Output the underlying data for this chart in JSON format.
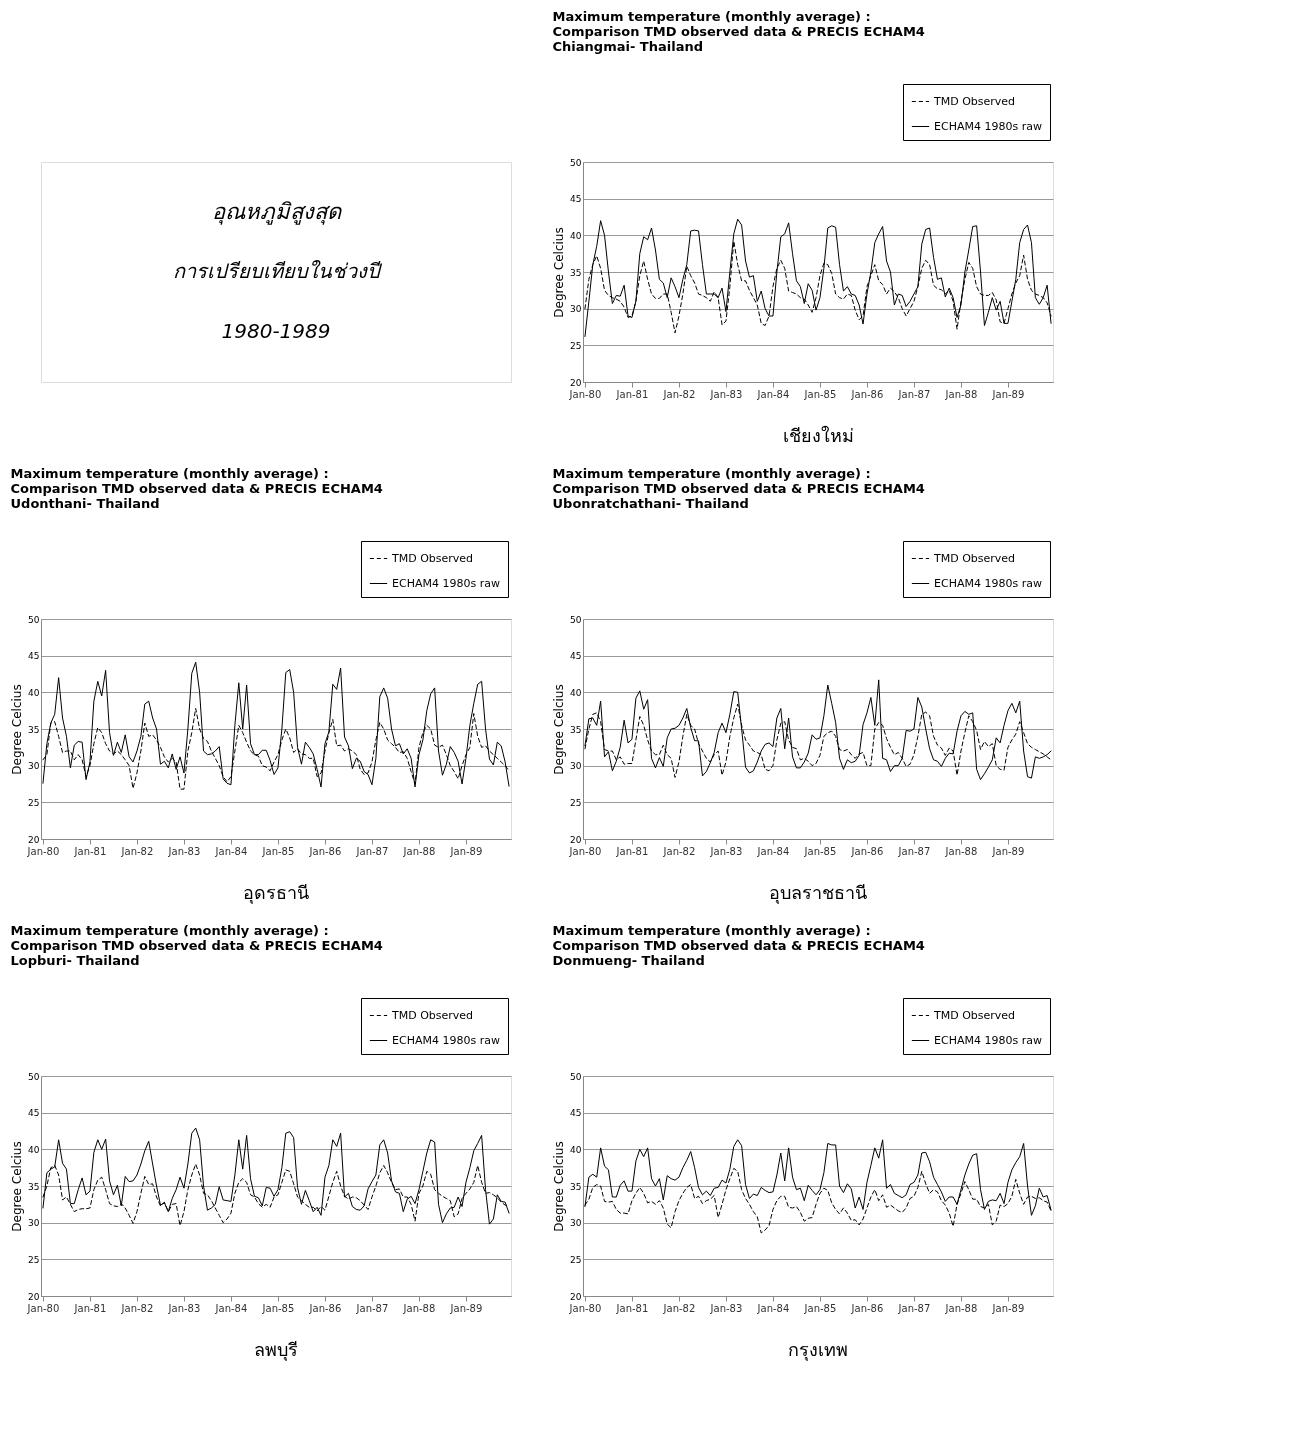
{
  "chart_data": [
    {
      "type": "other",
      "title": "อุณหภูมิสูงสุด",
      "subtitle": "การเปรียบเทียบในช่วงปี",
      "annotations": [
        "1980-1989"
      ]
    },
    {
      "type": "line",
      "title": "Maximum temperature (monthly  average) :\nComparison TMD observed data & PRECIS ECHAM4\nChiangmai- Thailand",
      "ylabel": "Degree Celcius",
      "ylim": [
        20,
        50
      ],
      "yticks": [
        20,
        25,
        30,
        35,
        40,
        45,
        50
      ],
      "grid": "y",
      "legend": "top right",
      "annotations": [
        "เชียงใหม่"
      ],
      "categories": [
        "Jan-80",
        null,
        null,
        null,
        null,
        null,
        null,
        null,
        null,
        null,
        null,
        null,
        "Jan-81",
        null,
        null,
        null,
        null,
        null,
        null,
        null,
        null,
        null,
        null,
        null,
        "Jan-82",
        null,
        null,
        null,
        null,
        null,
        null,
        null,
        null,
        null,
        null,
        null,
        "Jan-83",
        null,
        null,
        null,
        null,
        null,
        null,
        null,
        null,
        null,
        null,
        null,
        "Jan-84",
        null,
        null,
        null,
        null,
        null,
        null,
        null,
        null,
        null,
        null,
        null,
        "Jan-85",
        null,
        null,
        null,
        null,
        null,
        null,
        null,
        null,
        null,
        null,
        null,
        "Jan-86",
        null,
        null,
        null,
        null,
        null,
        null,
        null,
        null,
        null,
        null,
        null,
        "Jan-87",
        null,
        null,
        null,
        null,
        null,
        null,
        null,
        null,
        null,
        null,
        null,
        "Jan-88",
        null,
        null,
        null,
        null,
        null,
        null,
        null,
        null,
        null,
        null,
        null,
        "Jan-89",
        null,
        null,
        null,
        null,
        null,
        null,
        null,
        null,
        null,
        null,
        null
      ],
      "series": [
        {
          "name": "TMD Observed",
          "color": "#000000",
          "line_style": "dashed",
          "values": [
            30,
            34,
            36,
            37.2,
            35.5,
            32.5,
            31.8,
            31.5,
            31.3,
            31,
            30.2,
            28.8,
            29,
            31,
            34.5,
            36.5,
            34,
            32,
            31.4,
            31.4,
            32,
            32,
            29.5,
            26.7,
            29,
            32,
            35.8,
            34.5,
            33.5,
            32,
            31.8,
            31.5,
            31,
            32.3,
            31.5,
            27.8,
            28.3,
            33,
            39.2,
            36,
            33.8,
            33.8,
            32.5,
            31.5,
            30.5,
            28,
            27.7,
            29,
            33,
            35.5,
            36.6,
            35.5,
            32.4,
            32.2,
            32,
            31.5,
            31.3,
            30.5,
            29.5,
            31.5,
            34.5,
            36.2,
            36,
            34.8,
            32,
            31.5,
            31.3,
            32,
            31.8,
            29.8,
            28.5,
            29,
            33,
            34.5,
            36,
            33.8,
            33.3,
            32,
            32.8,
            32.3,
            31.5,
            30,
            29,
            30,
            31,
            33,
            35.5,
            36.6,
            36,
            33.2,
            32.7,
            32.6,
            32,
            32.5,
            31,
            27.2,
            31,
            34,
            36.3,
            35.5,
            33,
            32,
            31.8,
            31.8,
            32.2,
            31.2,
            28.2,
            28,
            30,
            32,
            33.5,
            34.5,
            37.3,
            34,
            32.5,
            32,
            31.8,
            31.5,
            30.8,
            29
          ]
        },
        {
          "name": "ECHAM4 1980s raw",
          "color": "#000000",
          "line_style": "solid",
          "values": [
            26.2,
            31,
            36,
            38.5,
            42,
            40,
            35,
            30.7,
            31.8,
            31.7,
            33.2,
            29,
            28.8,
            31,
            37.5,
            39.8,
            39.4,
            41,
            38,
            34,
            33.5,
            31.5,
            34.2,
            33,
            31.5,
            34,
            36,
            40.6,
            40.7,
            40.6,
            36,
            32,
            32,
            32,
            31.5,
            32.8,
            29.6,
            35,
            40.2,
            42.2,
            41.4,
            36.5,
            34.3,
            34.5,
            31,
            32.4,
            30,
            29,
            29,
            35,
            39.8,
            40.2,
            41.7,
            37.5,
            33.8,
            33,
            30.7,
            33.4,
            32.5,
            29.8,
            31.5,
            35.5,
            41,
            41.3,
            41.1,
            36,
            32.4,
            33,
            32,
            31.8,
            30.5,
            27.9,
            32,
            35,
            39,
            40.2,
            41.2,
            36.5,
            35,
            30.5,
            32,
            31.8,
            30.3,
            31,
            32,
            33,
            38.8,
            40.8,
            41,
            37,
            34,
            34.2,
            31.6,
            32.8,
            31.5,
            28.8,
            30.5,
            35,
            38,
            41.2,
            41.3,
            35,
            27.7,
            29.5,
            31.5,
            29.8,
            31,
            28,
            28,
            31,
            34,
            39,
            40.8,
            41.4,
            39,
            31.5,
            30.6,
            31.5,
            33.2,
            28
          ]
        }
      ]
    },
    {
      "type": "line",
      "title": "Maximum temperature (monthly  average) :\nComparison TMD observed data & PRECIS ECHAM4\nUdonthani- Thailand",
      "ylabel": "Degree Celcius",
      "ylim": [
        20,
        50
      ],
      "yticks": [
        20,
        25,
        30,
        35,
        40,
        45,
        50
      ],
      "grid": "y",
      "legend": "top right",
      "annotations": [
        "อุดรธานี"
      ],
      "categories": [
        "Jan-80",
        null,
        null,
        null,
        null,
        null,
        null,
        null,
        null,
        null,
        null,
        null,
        "Jan-81",
        null,
        null,
        null,
        null,
        null,
        null,
        null,
        null,
        null,
        null,
        null,
        "Jan-82",
        null,
        null,
        null,
        null,
        null,
        null,
        null,
        null,
        null,
        null,
        null,
        "Jan-83",
        null,
        null,
        null,
        null,
        null,
        null,
        null,
        null,
        null,
        null,
        null,
        "Jan-84",
        null,
        null,
        null,
        null,
        null,
        null,
        null,
        null,
        null,
        null,
        null,
        "Jan-85",
        null,
        null,
        null,
        null,
        null,
        null,
        null,
        null,
        null,
        null,
        null,
        "Jan-86",
        null,
        null,
        null,
        null,
        null,
        null,
        null,
        null,
        null,
        null,
        null,
        "Jan-87",
        null,
        null,
        null,
        null,
        null,
        null,
        null,
        null,
        null,
        null,
        null,
        "Jan-88",
        null,
        null,
        null,
        null,
        null,
        null,
        null,
        null,
        null,
        null,
        null,
        "Jan-89",
        null,
        null,
        null,
        null,
        null,
        null,
        null,
        null,
        null,
        null,
        null
      ],
      "series": [
        {
          "name": "TMD Observed",
          "color": "#000000",
          "line_style": "dashed",
          "values": [
            30.8,
            31.5,
            35.8,
            36,
            34,
            31.8,
            32,
            32,
            30.8,
            31.5,
            30.8,
            28.5,
            30,
            33,
            35.2,
            34.5,
            33,
            32,
            31.6,
            32,
            31.5,
            30.8,
            30,
            26.9,
            29,
            32,
            35.8,
            34,
            34.2,
            33.5,
            32.5,
            31.2,
            30.5,
            31,
            30.5,
            26.8,
            26.8,
            32,
            34.5,
            37.8,
            35,
            33.7,
            33.3,
            32,
            31,
            30,
            28.5,
            27.8,
            28.5,
            32,
            35.5,
            34.5,
            33.2,
            32,
            31.5,
            31.3,
            30,
            29.8,
            29.3,
            30.5,
            31.5,
            33.5,
            35,
            33.8,
            31.8,
            32.3,
            31.6,
            31.5,
            31,
            31,
            28.5,
            29,
            32,
            34.5,
            36.3,
            32.7,
            32.8,
            32,
            32.3,
            32,
            31.5,
            29.5,
            28.8,
            29,
            30.5,
            33.5,
            35.9,
            35,
            33.5,
            33,
            32.5,
            31.8,
            31.9,
            31,
            29.2,
            27.5,
            32.5,
            34.5,
            35.5,
            35,
            32.8,
            32.5,
            32.8,
            31.5,
            30,
            29.2,
            28.2,
            30,
            31.5,
            32.5,
            37.1,
            34,
            32.5,
            32.7,
            32,
            31.5,
            31,
            30.5,
            30,
            29.3
          ]
        },
        {
          "name": "ECHAM4 1980s raw",
          "color": "#000000",
          "line_style": "solid",
          "values": [
            27.6,
            33,
            35.8,
            37,
            42,
            36.5,
            34,
            29.7,
            32.8,
            33.3,
            33.2,
            28.1,
            30.5,
            38.8,
            41.5,
            39.5,
            43,
            34.5,
            31.4,
            33.2,
            31.8,
            34.2,
            31.2,
            30.5,
            32,
            34,
            38.4,
            38.8,
            36.5,
            35,
            30.2,
            30.6,
            29.7,
            31.6,
            29.5,
            31.2,
            29,
            35,
            42.6,
            44.1,
            40,
            32,
            31.5,
            31.6,
            32,
            32.6,
            28.2,
            27.6,
            27.4,
            35.5,
            41.3,
            35,
            41,
            33,
            31.5,
            31.5,
            32.1,
            32.1,
            30.7,
            28.8,
            29.7,
            35,
            42.7,
            43.1,
            40,
            32.5,
            30.2,
            33.2,
            32.5,
            31.6,
            29.5,
            27.1,
            33,
            34.6,
            41.1,
            40.4,
            43.3,
            33.9,
            32.7,
            29.6,
            31,
            30.6,
            29.2,
            28.8,
            27.4,
            31,
            39.4,
            40.6,
            39.2,
            35,
            32.7,
            33,
            31.6,
            32.3,
            31,
            27.1,
            31.5,
            33.5,
            37.5,
            39.8,
            40.6,
            32,
            28.7,
            30.2,
            32.6,
            31.8,
            30.6,
            27.5,
            31,
            35.5,
            38.5,
            41.1,
            41.5,
            35,
            30.9,
            30.1,
            33.2,
            32.7,
            30.5,
            27.2
          ]
        }
      ]
    },
    {
      "type": "line",
      "title": "Maximum temperature (monthly  average) :\nComparison TMD observed data & PRECIS ECHAM4\nUbonratchathani- Thailand",
      "ylabel": "Degree Celcius",
      "ylim": [
        20,
        50
      ],
      "yticks": [
        20,
        25,
        30,
        35,
        40,
        45,
        50
      ],
      "grid": "y",
      "legend": "top right",
      "annotations": [
        "อุบลราชธานี"
      ],
      "categories": [
        "Jan-80",
        null,
        null,
        null,
        null,
        null,
        null,
        null,
        null,
        null,
        null,
        null,
        "Jan-81",
        null,
        null,
        null,
        null,
        null,
        null,
        null,
        null,
        null,
        null,
        null,
        "Jan-82",
        null,
        null,
        null,
        null,
        null,
        null,
        null,
        null,
        null,
        null,
        null,
        "Jan-83",
        null,
        null,
        null,
        null,
        null,
        null,
        null,
        null,
        null,
        null,
        null,
        "Jan-84",
        null,
        null,
        null,
        null,
        null,
        null,
        null,
        null,
        null,
        null,
        null,
        "Jan-85",
        null,
        null,
        null,
        null,
        null,
        null,
        null,
        null,
        null,
        null,
        null,
        "Jan-86",
        null,
        null,
        null,
        null,
        null,
        null,
        null,
        null,
        null,
        null,
        null,
        "Jan-87",
        null,
        null,
        null,
        null,
        null,
        null,
        null,
        null,
        null,
        null,
        null,
        "Jan-88",
        null,
        null,
        null,
        null,
        null,
        null,
        null,
        null,
        null,
        null,
        null,
        "Jan-89",
        null,
        null,
        null,
        null,
        null,
        null,
        null,
        null,
        null,
        null,
        null
      ],
      "series": [
        {
          "name": "TMD Observed",
          "color": "#000000",
          "line_style": "dashed",
          "values": [
            32.3,
            35,
            37,
            37.2,
            36,
            32.2,
            32,
            32,
            30.8,
            31.2,
            30.2,
            30.3,
            30.3,
            33.5,
            36.7,
            35.5,
            33.5,
            32,
            31.5,
            31.5,
            32.8,
            31.5,
            31,
            28.4,
            30.5,
            34,
            37,
            35.5,
            35,
            33,
            32,
            31,
            30.5,
            31.5,
            32,
            28.7,
            30.5,
            34,
            36.5,
            38.4,
            35.5,
            33.5,
            32.8,
            32,
            31.8,
            31.5,
            29.5,
            29.3,
            30,
            33.5,
            35.8,
            36,
            33.5,
            32.5,
            32.3,
            30.8,
            31,
            30.6,
            30,
            30.3,
            31.4,
            34,
            34.5,
            34.7,
            34,
            32.2,
            32,
            32.2,
            31.5,
            31,
            31.6,
            31.8,
            30,
            30,
            35,
            35.9,
            35.5,
            33.7,
            32.5,
            31.5,
            31.8,
            31,
            29.9,
            30.2,
            31.5,
            34,
            37,
            37.3,
            36.8,
            34,
            32.8,
            32.4,
            31.4,
            32.4,
            32,
            28.7,
            32,
            34.5,
            36.8,
            36,
            34.8,
            32.2,
            33.3,
            32.6,
            33,
            30,
            29.5,
            29.4,
            32.5,
            33.5,
            34.3,
            36,
            34.5,
            33,
            32.5,
            32.2,
            31.9,
            31.6,
            31.2,
            30.8
          ]
        },
        {
          "name": "ECHAM4 1980s raw",
          "color": "#000000",
          "line_style": "solid",
          "values": [
            32.7,
            36.4,
            36.5,
            35.5,
            38.8,
            31.2,
            31.9,
            29.3,
            30.6,
            32.5,
            36.2,
            33.1,
            33.6,
            39.2,
            40.2,
            37.7,
            39,
            31,
            29.7,
            31.1,
            29.9,
            33.8,
            35,
            35.1,
            35.5,
            36.5,
            37.8,
            35.2,
            33.4,
            33.4,
            28.6,
            29.2,
            30.4,
            31.8,
            34.5,
            35.8,
            34.5,
            37,
            40.1,
            40,
            35,
            29.8,
            29,
            29.3,
            30.5,
            32,
            32.9,
            33.1,
            32.6,
            36.5,
            37.8,
            32.3,
            36.5,
            31.2,
            29.7,
            29.7,
            30.5,
            31.7,
            34.2,
            33.6,
            33.8,
            36.8,
            41,
            38.5,
            35.9,
            31,
            29.5,
            30.8,
            30.4,
            30.6,
            31.4,
            35.6,
            37.2,
            39.3,
            35.5,
            41.7,
            31,
            30.8,
            29.2,
            30,
            30,
            31,
            34.8,
            34.7,
            35,
            39.3,
            38,
            35,
            32.3,
            30.8,
            30.6,
            29.9,
            31,
            31.7,
            31.6,
            34.7,
            36.8,
            37.4,
            37,
            37.2,
            29.5,
            28.1,
            28.9,
            29.8,
            30.8,
            33.8,
            33.1,
            35.5,
            37.5,
            38.5,
            37.2,
            38.8,
            32,
            28.5,
            28.3,
            31.2,
            31,
            31.2,
            31.5,
            32
          ]
        }
      ]
    },
    {
      "type": "line",
      "title": "Maximum temperature (monthly  average) :\nComparison TMD observed data & PRECIS ECHAM4\nLopburi- Thailand",
      "ylabel": "Degree Celcius",
      "ylim": [
        20,
        50
      ],
      "yticks": [
        20,
        25,
        30,
        35,
        40,
        45,
        50
      ],
      "grid": "y",
      "legend": "top right",
      "annotations": [
        "ลพบุรี"
      ],
      "categories": [
        "Jan-80",
        null,
        null,
        null,
        null,
        null,
        null,
        null,
        null,
        null,
        null,
        null,
        "Jan-81",
        null,
        null,
        null,
        null,
        null,
        null,
        null,
        null,
        null,
        null,
        null,
        "Jan-82",
        null,
        null,
        null,
        null,
        null,
        null,
        null,
        null,
        null,
        null,
        null,
        "Jan-83",
        null,
        null,
        null,
        null,
        null,
        null,
        null,
        null,
        null,
        null,
        null,
        "Jan-84",
        null,
        null,
        null,
        null,
        null,
        null,
        null,
        null,
        null,
        null,
        null,
        "Jan-85",
        null,
        null,
        null,
        null,
        null,
        null,
        null,
        null,
        null,
        null,
        null,
        "Jan-86",
        null,
        null,
        null,
        null,
        null,
        null,
        null,
        null,
        null,
        null,
        null,
        "Jan-87",
        null,
        null,
        null,
        null,
        null,
        null,
        null,
        null,
        null,
        null,
        null,
        "Jan-88",
        null,
        null,
        null,
        null,
        null,
        null,
        null,
        null,
        null,
        null,
        null,
        "Jan-89",
        null,
        null,
        null,
        null,
        null,
        null,
        null,
        null,
        null,
        null,
        null
      ],
      "series": [
        {
          "name": "TMD Observed",
          "color": "#000000",
          "line_style": "dashed",
          "values": [
            33.5,
            35,
            37.5,
            37.8,
            36.5,
            33.1,
            33.5,
            32.5,
            31.5,
            31.8,
            31.9,
            31.9,
            32,
            34.5,
            35.8,
            36.2,
            34.5,
            32.6,
            32.3,
            32.2,
            32.6,
            32,
            31,
            29.9,
            31.5,
            34,
            36.3,
            35.2,
            35.3,
            33.5,
            32.3,
            32.8,
            31.5,
            32.5,
            32.6,
            29.6,
            31.5,
            34.5,
            36.5,
            38,
            36.5,
            34,
            33.8,
            33,
            32,
            31,
            30,
            30.5,
            31.3,
            34,
            35.5,
            36,
            35.5,
            33.8,
            33.5,
            32.6,
            32.1,
            32.5,
            32.1,
            33.5,
            33.8,
            35.5,
            37.2,
            37,
            35.3,
            33.5,
            33,
            32.5,
            32.1,
            32.1,
            31.6,
            32.2,
            31.7,
            33.6,
            35.5,
            37,
            35,
            33.6,
            33.2,
            33.5,
            33.4,
            33,
            32.4,
            31.8,
            33.5,
            35,
            36.8,
            37.8,
            36.8,
            35.5,
            34.5,
            34.6,
            33.5,
            33.5,
            32.5,
            30.2,
            34,
            35,
            37,
            36.6,
            34.5,
            34,
            33.6,
            33.3,
            33,
            30.8,
            31.2,
            33.3,
            34,
            34.6,
            35.5,
            37.8,
            35.5,
            34,
            34.1,
            33.8,
            33.4,
            32.8,
            32.4,
            32.3
          ]
        },
        {
          "name": "ECHAM4 1980s raw",
          "color": "#000000",
          "line_style": "solid",
          "values": [
            32,
            36.8,
            37.3,
            37.6,
            41.3,
            38.1,
            37.3,
            32.6,
            32.6,
            34.5,
            36.1,
            33.8,
            34.3,
            39.6,
            41.3,
            40,
            41.4,
            35.7,
            33.8,
            35.1,
            32.3,
            36.3,
            35.6,
            35.7,
            36.5,
            38,
            39.8,
            41.1,
            38,
            35,
            32.4,
            32.7,
            31.5,
            33.3,
            34.5,
            36.2,
            34.7,
            38,
            42.2,
            42.9,
            41.3,
            35,
            31.7,
            32,
            32.5,
            34.9,
            33.1,
            33,
            32.9,
            36.5,
            41.3,
            37.3,
            41.9,
            36,
            33.6,
            33.4,
            32.3,
            34.8,
            34.7,
            33.6,
            34.5,
            37.5,
            42.2,
            42.4,
            41.6,
            34.8,
            32.5,
            34.4,
            33,
            31.5,
            32.1,
            31,
            36.2,
            37.8,
            41.3,
            40.4,
            42.2,
            33.5,
            34,
            32.2,
            31.8,
            31.7,
            32.3,
            34.6,
            35.6,
            36.5,
            40.6,
            41.3,
            39.5,
            35.7,
            34.2,
            34,
            31.5,
            33.2,
            33.6,
            32.6,
            34.5,
            37,
            39.5,
            41.3,
            41,
            32.5,
            30,
            31.2,
            32,
            32.1,
            33.5,
            32.2,
            35.5,
            37.5,
            39.8,
            40.8,
            41.9,
            34.5,
            29.8,
            30.5,
            33.8,
            32.9,
            32.8,
            31.3
          ]
        }
      ]
    },
    {
      "type": "line",
      "title": "Maximum temperature (monthly  average) :\nComparison TMD observed data & PRECIS ECHAM4\nDonmueng- Thailand",
      "ylabel": "Degree Celcius",
      "ylim": [
        20,
        50
      ],
      "yticks": [
        20,
        25,
        30,
        35,
        40,
        45,
        50
      ],
      "grid": "y",
      "legend": "top right",
      "annotations": [
        "กรุงเทพ"
      ],
      "categories": [
        "Jan-80",
        null,
        null,
        null,
        null,
        null,
        null,
        null,
        null,
        null,
        null,
        null,
        "Jan-81",
        null,
        null,
        null,
        null,
        null,
        null,
        null,
        null,
        null,
        null,
        null,
        "Jan-82",
        null,
        null,
        null,
        null,
        null,
        null,
        null,
        null,
        null,
        null,
        null,
        "Jan-83",
        null,
        null,
        null,
        null,
        null,
        null,
        null,
        null,
        null,
        null,
        null,
        "Jan-84",
        null,
        null,
        null,
        null,
        null,
        null,
        null,
        null,
        null,
        null,
        null,
        "Jan-85",
        null,
        null,
        null,
        null,
        null,
        null,
        null,
        null,
        null,
        null,
        null,
        "Jan-86",
        null,
        null,
        null,
        null,
        null,
        null,
        null,
        null,
        null,
        null,
        null,
        "Jan-87",
        null,
        null,
        null,
        null,
        null,
        null,
        null,
        null,
        null,
        null,
        null,
        "Jan-88",
        null,
        null,
        null,
        null,
        null,
        null,
        null,
        null,
        null,
        null,
        null,
        "Jan-89",
        null,
        null,
        null,
        null,
        null,
        null,
        null,
        null,
        null,
        null,
        null
      ],
      "series": [
        {
          "name": "TMD Observed",
          "color": "#000000",
          "line_style": "dashed",
          "values": [
            32.4,
            33.2,
            34.8,
            35.2,
            35,
            32.9,
            32.8,
            32.9,
            31.8,
            31.3,
            31.3,
            31.2,
            33,
            34,
            34.8,
            34,
            32.7,
            32.9,
            32.5,
            33,
            32,
            29.8,
            29.3,
            31.5,
            33,
            34,
            34.8,
            35.2,
            33.3,
            33.6,
            32.6,
            33,
            33.2,
            33.7,
            30.7,
            32.5,
            34.5,
            36,
            37.4,
            37,
            34.5,
            33.3,
            32.5,
            31.5,
            30.8,
            28.6,
            29,
            29.6,
            31.8,
            33,
            33.6,
            33.6,
            32.1,
            32,
            32.2,
            31.4,
            30.2,
            30.6,
            30.7,
            32.5,
            34,
            34.7,
            34.4,
            32.7,
            31.8,
            31.2,
            32,
            31.3,
            30.3,
            30.4,
            29.7,
            30.5,
            32,
            33.5,
            34.5,
            33,
            33.8,
            32.1,
            32.4,
            32,
            31.6,
            31.4,
            32,
            33.3,
            33.6,
            34.8,
            37,
            35.3,
            34,
            34.5,
            34.2,
            33,
            32.4,
            31.3,
            29.5,
            32.5,
            34,
            35.6,
            34.5,
            33.2,
            33.2,
            32.2,
            32,
            32.5,
            29.7,
            30.2,
            32.4,
            32.2,
            32.6,
            33.6,
            35.9,
            34,
            32.5,
            33.5,
            33.6,
            33.3,
            33.4,
            33,
            32.8,
            31.6
          ]
        },
        {
          "name": "ECHAM4 1980s raw",
          "color": "#000000",
          "line_style": "solid",
          "values": [
            32.2,
            36.2,
            36.6,
            36.2,
            40.2,
            37.7,
            37.2,
            33.5,
            33.5,
            35.1,
            35.7,
            34.3,
            34.3,
            38.4,
            40,
            39,
            40.2,
            36,
            35,
            36,
            33.1,
            36.4,
            36,
            35.8,
            36.2,
            37.5,
            38.5,
            39.7,
            37.5,
            34.8,
            33.8,
            34.3,
            33.7,
            34.7,
            34.8,
            35.8,
            35.4,
            37.3,
            40.4,
            41.3,
            40.5,
            35.2,
            33.3,
            33.9,
            33.7,
            34.8,
            34.4,
            34.1,
            34.2,
            36.5,
            39.5,
            35.7,
            40.2,
            36.2,
            34.5,
            34.7,
            33,
            35.1,
            34.4,
            33.8,
            34.5,
            36.8,
            40.8,
            40.6,
            40.6,
            35,
            34.1,
            35.3,
            34.6,
            32,
            33.5,
            31.8,
            35.5,
            37.8,
            40.2,
            38.8,
            41.3,
            34.7,
            35.2,
            34,
            33.7,
            33.4,
            33.8,
            35.2,
            35.5,
            36.5,
            39.5,
            39.6,
            38.3,
            36.2,
            35.2,
            34.2,
            32.9,
            33.5,
            33.5,
            32.5,
            34.5,
            36.5,
            38,
            39.2,
            39.4,
            34.5,
            31.8,
            32.9,
            33.1,
            33,
            34,
            32.6,
            35.5,
            37.2,
            38.2,
            39,
            40.8,
            35,
            31,
            32.3,
            34.7,
            33.5,
            33.7,
            31.7
          ]
        }
      ]
    }
  ]
}
